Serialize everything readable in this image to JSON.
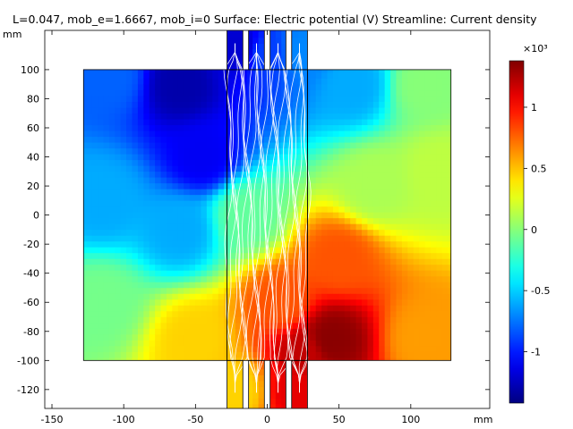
{
  "title": "L=0.047, mob_e=1.6667, mob_i=0   Surface: Electric potential (V)  Streamline: Current density",
  "chart_data": {
    "type": "heatmap",
    "title": "L=0.047, mob_e=1.6667, mob_i=0   Surface: Electric potential (V)  Streamline: Current density",
    "surface_label": "Surface: Electric potential (V)",
    "streamline_label": "Streamline: Current density",
    "parameters": {
      "L": "0.047",
      "mob_e": "1.6667",
      "mob_i": "0"
    },
    "x_unit": "mm",
    "y_unit": "mm",
    "xlim": [
      -155,
      155
    ],
    "ylim": [
      -133,
      127
    ],
    "x_ticks": [
      -150,
      -100,
      -50,
      0,
      50,
      100
    ],
    "y_ticks": [
      -120,
      -100,
      -80,
      -60,
      -40,
      -20,
      0,
      20,
      40,
      60,
      80,
      100
    ],
    "domain": {
      "left_block": {
        "x": [
          -128,
          -28
        ],
        "y": [
          -100,
          100
        ]
      },
      "center_channel": {
        "x": [
          -28,
          28
        ],
        "y": [
          -100,
          100
        ]
      },
      "right_block": {
        "x": [
          28,
          128
        ],
        "y": [
          -100,
          100
        ]
      },
      "top_electrodes": [
        {
          "x": [
            -28,
            -17
          ],
          "y": [
            100,
            127
          ]
        },
        {
          "x": [
            -13,
            -2
          ],
          "y": [
            100,
            127
          ]
        },
        {
          "x": [
            2,
            13
          ],
          "y": [
            100,
            127
          ]
        },
        {
          "x": [
            17,
            28
          ],
          "y": [
            100,
            127
          ]
        }
      ],
      "bottom_electrodes": [
        {
          "x": [
            -28,
            -17
          ],
          "y": [
            -133,
            -100
          ]
        },
        {
          "x": [
            -13,
            -2
          ],
          "y": [
            -133,
            -100
          ]
        },
        {
          "x": [
            2,
            13
          ],
          "y": [
            -133,
            -100
          ]
        },
        {
          "x": [
            17,
            28
          ],
          "y": [
            -133,
            -100
          ]
        }
      ]
    },
    "potential_samples_V": [
      {
        "x": -110,
        "y": 95,
        "v": -800
      },
      {
        "x": -60,
        "y": 90,
        "v": -1300
      },
      {
        "x": -45,
        "y": 40,
        "v": -1100
      },
      {
        "x": -115,
        "y": 10,
        "v": -600
      },
      {
        "x": -60,
        "y": -10,
        "v": -600
      },
      {
        "x": -115,
        "y": -60,
        "v": -50
      },
      {
        "x": -50,
        "y": -85,
        "v": 450
      },
      {
        "x": -20,
        "y": 115,
        "v": -1200
      },
      {
        "x": 0,
        "y": 110,
        "v": -900
      },
      {
        "x": 25,
        "y": 112,
        "v": -700
      },
      {
        "x": -15,
        "y": 0,
        "v": -100
      },
      {
        "x": 10,
        "y": -60,
        "v": 800
      },
      {
        "x": 25,
        "y": -95,
        "v": 1200
      },
      {
        "x": -20,
        "y": -120,
        "v": 450
      },
      {
        "x": 20,
        "y": -120,
        "v": 1100
      },
      {
        "x": 60,
        "y": 90,
        "v": -600
      },
      {
        "x": 110,
        "y": 90,
        "v": 0
      },
      {
        "x": 75,
        "y": 20,
        "v": 100
      },
      {
        "x": 120,
        "y": 30,
        "v": 150
      },
      {
        "x": 50,
        "y": -30,
        "v": 800
      },
      {
        "x": 45,
        "y": -85,
        "v": 1350
      },
      {
        "x": 110,
        "y": -85,
        "v": 600
      }
    ],
    "colorbar": {
      "label": "×10³",
      "multiplier": 1000,
      "range": [
        -1.42,
        1.38
      ],
      "tick_values": [
        -1,
        -0.5,
        0,
        0.5,
        1
      ],
      "tick_labels": [
        "-1",
        "-0.5",
        "0",
        "0.5",
        "1"
      ],
      "colormap": "jet"
    },
    "streamlines": "white current-density streamlines run vertically through the central channel between top and bottom electrodes",
    "grid": false
  }
}
